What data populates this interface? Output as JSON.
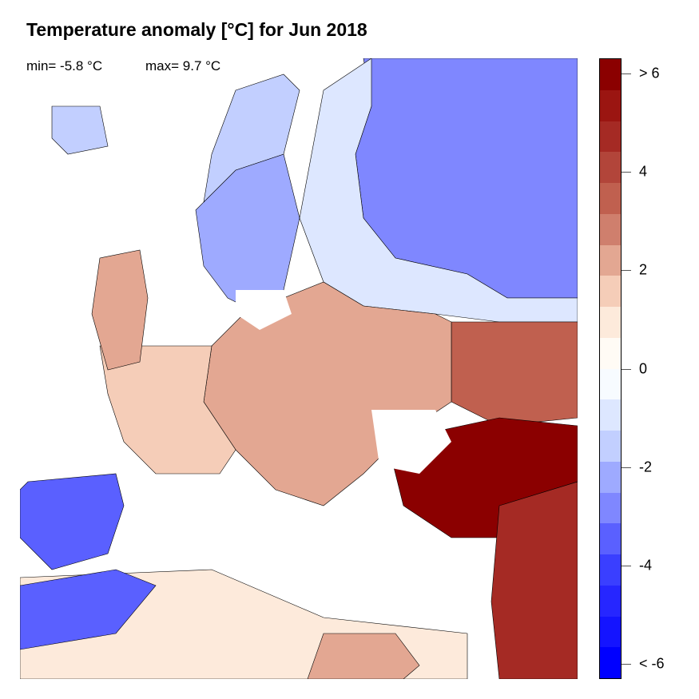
{
  "title": "Temperature anomaly [°C] for Jun 2018",
  "stats": {
    "min_label": "min= -5.8 °C",
    "max_label": "max= 9.7 °C"
  },
  "colorbar": {
    "ticks": [
      {
        "label": "> 6",
        "value": 6
      },
      {
        "label": "4",
        "value": 4
      },
      {
        "label": "2",
        "value": 2
      },
      {
        "label": "0",
        "value": 0
      },
      {
        "label": "-2",
        "value": -2
      },
      {
        "label": "-4",
        "value": -4
      },
      {
        "label": "< -6",
        "value": -6
      }
    ],
    "colors": [
      "#8b0000",
      "#9b1511",
      "#a52a24",
      "#b2453a",
      "#c0604f",
      "#cf7f6d",
      "#e3a792",
      "#f5cdb8",
      "#fdeadb",
      "#fffbf5",
      "#f7fbff",
      "#dde7ff",
      "#c2cfff",
      "#9eaaff",
      "#7f87ff",
      "#5a60ff",
      "#3a3fff",
      "#2626ff",
      "#1414ff",
      "#0000ff"
    ]
  },
  "map": {
    "region": "Europe",
    "regions": [
      {
        "name": "northwest-russia",
        "color": "#7f87ff"
      },
      {
        "name": "eastern-europe-north",
        "color": "#dde7ff"
      },
      {
        "name": "central-europe",
        "color": "#e3a792"
      },
      {
        "name": "western-europe",
        "color": "#f5cdb8"
      },
      {
        "name": "scandinavia-south",
        "color": "#cf7f6d"
      },
      {
        "name": "norway-coast",
        "color": "#9eaaff"
      },
      {
        "name": "iberia",
        "color": "#c2cfff"
      },
      {
        "name": "north-africa-west",
        "color": "#5a60ff"
      },
      {
        "name": "north-africa",
        "color": "#fdeadb"
      },
      {
        "name": "turkey",
        "color": "#e3a792"
      },
      {
        "name": "middle-east",
        "color": "#8b0000"
      },
      {
        "name": "libya-egypt",
        "color": "#a52a24"
      },
      {
        "name": "iceland",
        "color": "#c2cfff"
      },
      {
        "name": "british-isles",
        "color": "#e3a792"
      },
      {
        "name": "southern-russia",
        "color": "#c0604f"
      }
    ]
  }
}
